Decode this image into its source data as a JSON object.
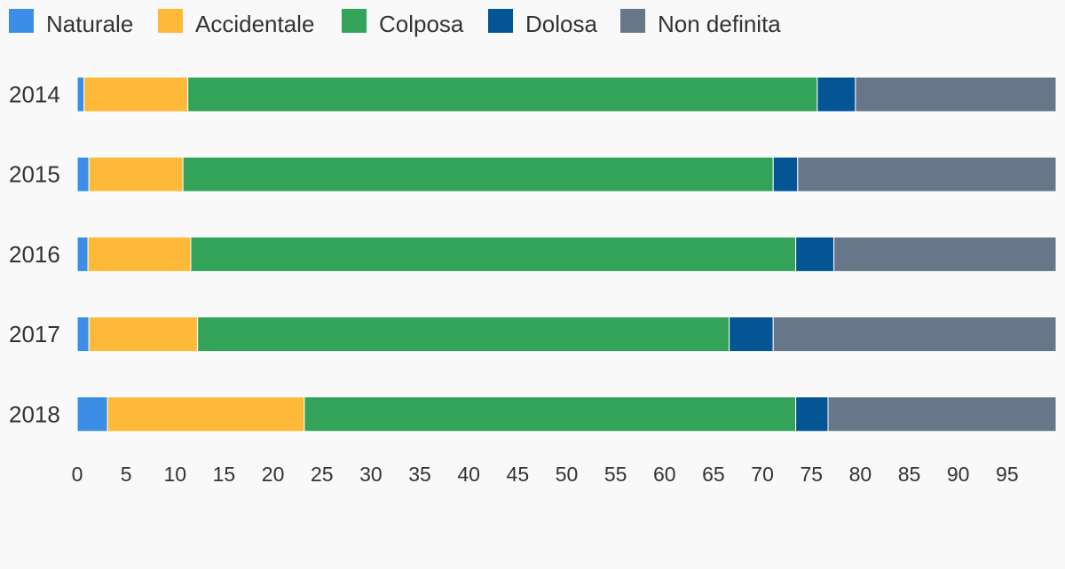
{
  "chart_data": {
    "type": "bar",
    "orientation": "horizontal",
    "stacked": true,
    "title": "",
    "xlabel": "",
    "ylabel": "",
    "categories": [
      "2014",
      "2015",
      "2016",
      "2017",
      "2018"
    ],
    "series": [
      {
        "name": "Naturale",
        "color": "#3a8ee6",
        "values": [
          0.7,
          1.2,
          1.1,
          1.2,
          3.1
        ]
      },
      {
        "name": "Accidentale",
        "color": "#ffb938",
        "values": [
          10.6,
          9.6,
          10.5,
          11.1,
          20.1
        ]
      },
      {
        "name": "Colposa",
        "color": "#33a35a",
        "values": [
          64.3,
          60.3,
          61.8,
          54.3,
          50.2
        ]
      },
      {
        "name": "Dolosa",
        "color": "#035594",
        "values": [
          3.9,
          2.5,
          3.9,
          4.5,
          3.3
        ]
      },
      {
        "name": "Non definita",
        "color": "#68768a",
        "values": [
          20.5,
          26.4,
          22.7,
          28.9,
          23.3
        ]
      }
    ],
    "xlim": [
      0,
      100
    ],
    "xticks": [
      0,
      5,
      10,
      15,
      20,
      25,
      30,
      35,
      40,
      45,
      50,
      55,
      60,
      65,
      70,
      75,
      80,
      85,
      90,
      95
    ],
    "grid": false,
    "legend_position": "top-left"
  }
}
